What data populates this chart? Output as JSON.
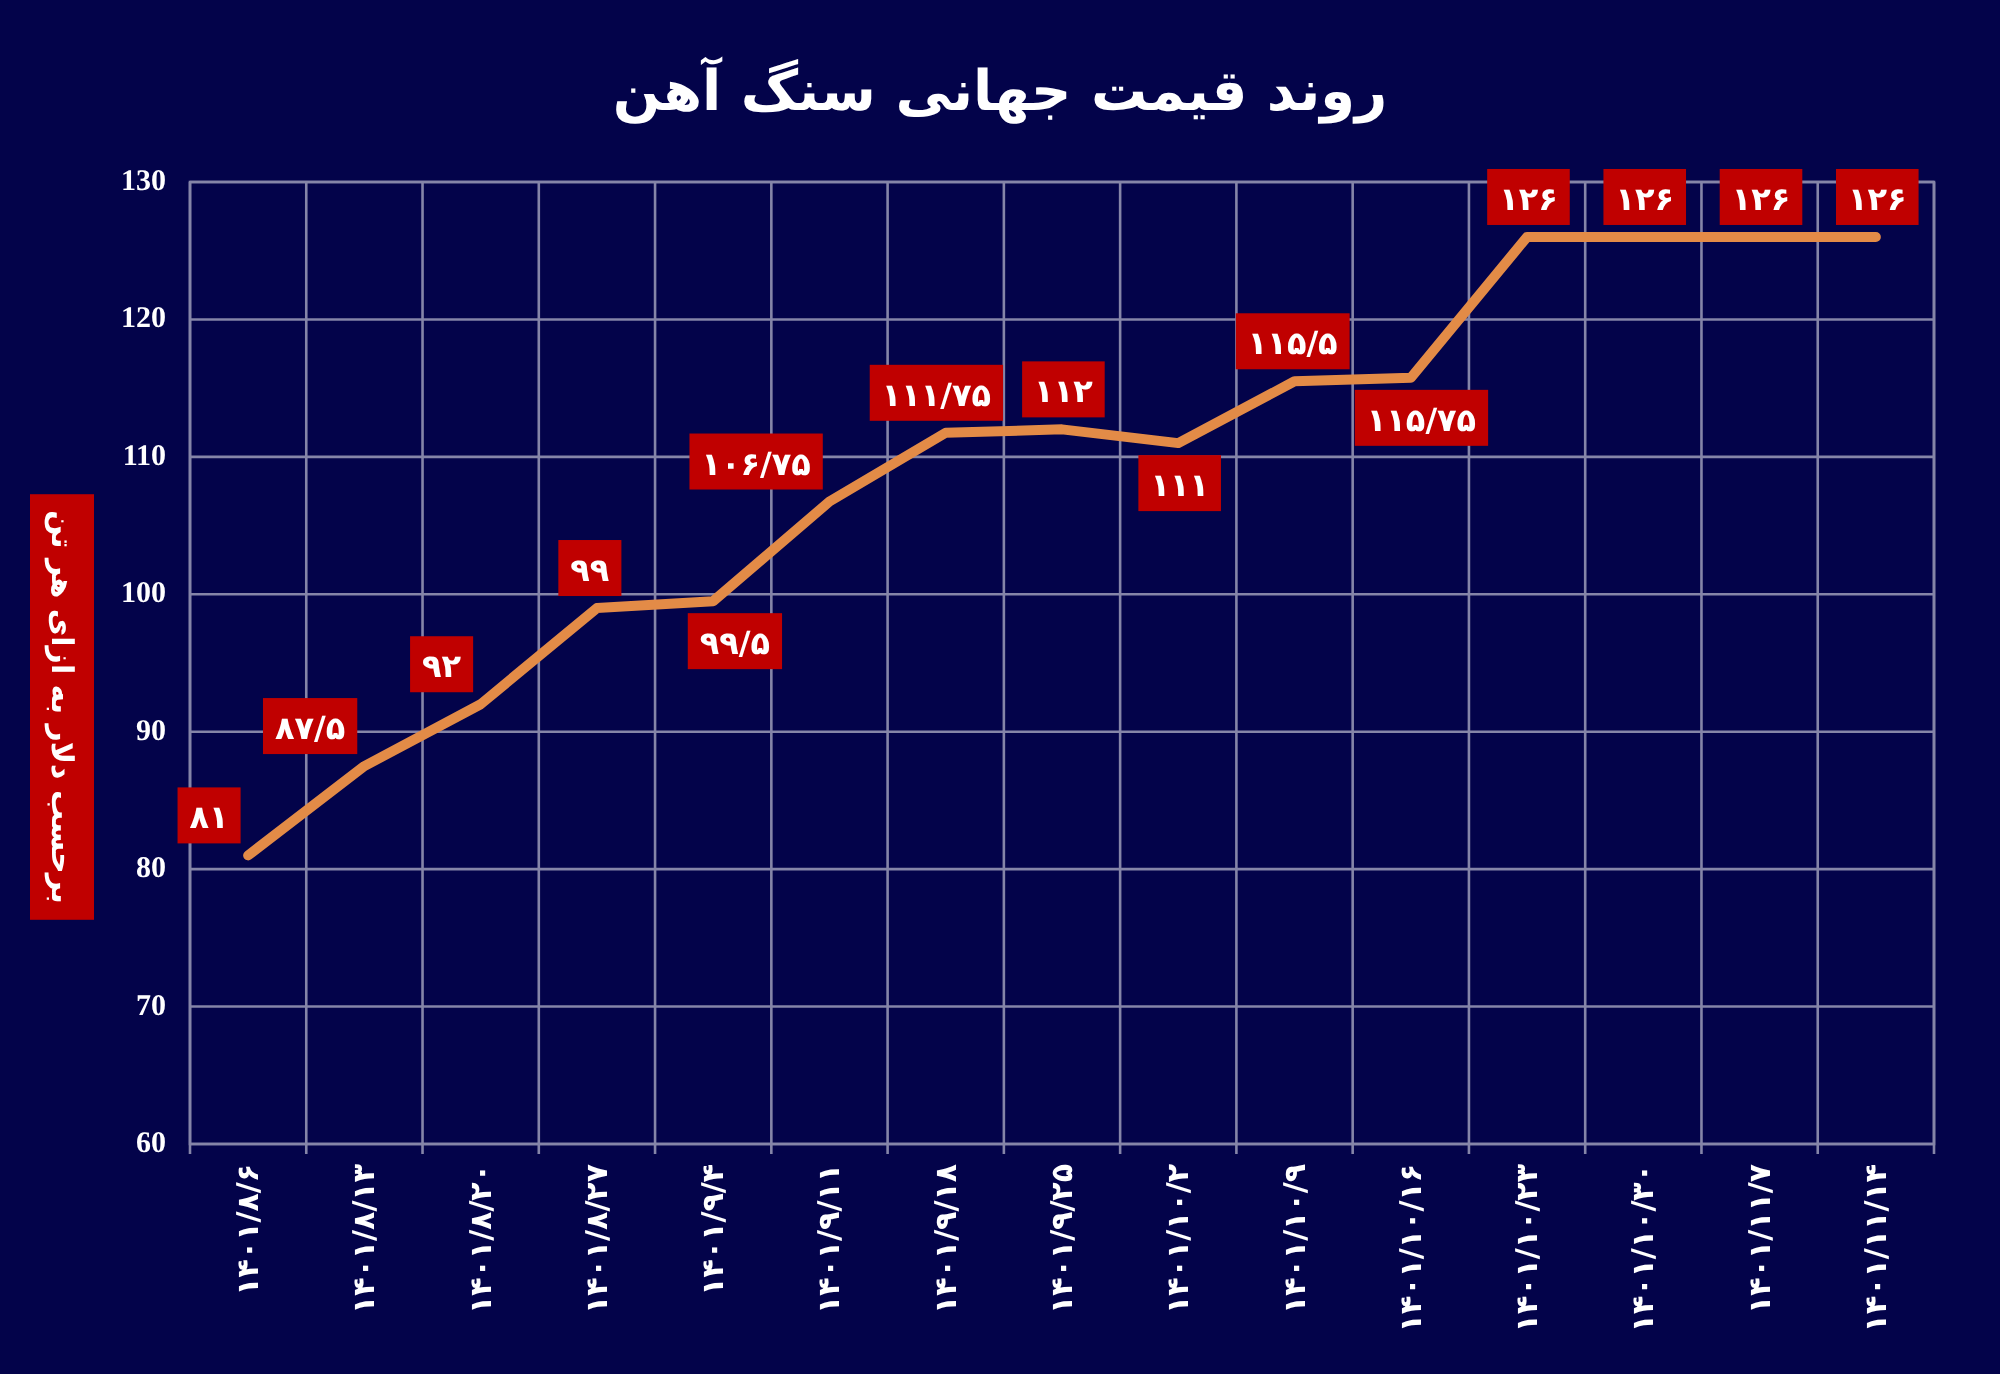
{
  "chart_data": {
    "type": "line",
    "title": "روند قیمت جهانی سنگ آهن",
    "ylabel": "برحسب دلار به ازای هر تن",
    "categories": [
      "۱۴۰۱/۸/۶",
      "۱۴۰۱/۸/۱۳",
      "۱۴۰۱/۸/۲۰",
      "۱۴۰۱/۸/۲۷",
      "۱۴۰۱/۹/۴",
      "۱۴۰۱/۹/۱۱",
      "۱۴۰۱/۹/۱۸",
      "۱۴۰۱/۹/۲۵",
      "۱۴۰۱/۱۰/۲",
      "۱۴۰۱/۱۰/۹",
      "۱۴۰۱/۱۰/۱۶",
      "۱۴۰۱/۱۰/۲۳",
      "۱۴۰۱/۱۰/۳۰",
      "۱۴۰۱/۱۱/۷",
      "۱۴۰۱/۱۱/۱۴"
    ],
    "values": [
      81,
      87.5,
      92,
      99,
      99.5,
      106.75,
      111.75,
      112,
      111,
      115.5,
      115.75,
      126,
      126,
      126,
      126
    ],
    "value_labels": [
      "۸۱",
      "۸۷/۵",
      "۹۲",
      "۹۹",
      "۹۹/۵",
      "۱۰۶/۷۵",
      "۱۱۱/۷۵",
      "۱۱۲",
      "۱۱۱",
      "۱۱۵/۵",
      "۱۱۵/۷۵",
      "۱۲۶",
      "۱۲۶",
      "۱۲۶",
      "۱۲۶"
    ],
    "color": "#e38b47",
    "ylim": [
      60,
      130
    ],
    "yticks": [
      60,
      70,
      80,
      90,
      100,
      110,
      120,
      130
    ],
    "grid": true,
    "line_style": "solid"
  }
}
